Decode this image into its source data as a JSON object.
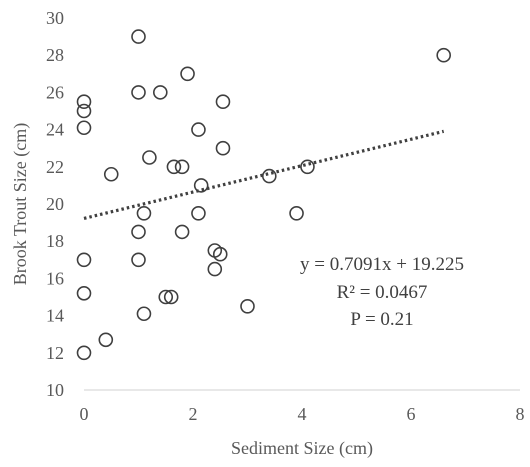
{
  "chart_data": {
    "type": "scatter",
    "title": "",
    "xlabel": "Sediment Size (cm)",
    "ylabel": "Brook Trout Size (cm)",
    "xlim": [
      0,
      8
    ],
    "ylim": [
      10,
      30
    ],
    "x_ticks": [
      "0",
      "2",
      "4",
      "6",
      "8"
    ],
    "y_ticks": [
      "10",
      "12",
      "14",
      "16",
      "18",
      "20",
      "22",
      "24",
      "26",
      "28",
      "30"
    ],
    "grid": false,
    "series": [
      {
        "points": [
          [
            0.0,
            25.5
          ],
          [
            0.0,
            25.0
          ],
          [
            0.0,
            24.1
          ],
          [
            0.0,
            17.0
          ],
          [
            0.0,
            15.2
          ],
          [
            0.0,
            12.0
          ],
          [
            0.4,
            12.7
          ],
          [
            0.5,
            21.6
          ],
          [
            1.0,
            29.0
          ],
          [
            1.0,
            26.0
          ],
          [
            1.0,
            18.5
          ],
          [
            1.0,
            17.0
          ],
          [
            1.1,
            19.5
          ],
          [
            1.1,
            14.1
          ],
          [
            1.2,
            22.5
          ],
          [
            1.4,
            26.0
          ],
          [
            1.5,
            15.0
          ],
          [
            1.6,
            15.0
          ],
          [
            1.65,
            22.0
          ],
          [
            1.8,
            22.0
          ],
          [
            1.8,
            18.5
          ],
          [
            1.9,
            27.0
          ],
          [
            2.1,
            24.0
          ],
          [
            2.1,
            19.5
          ],
          [
            2.15,
            21.0
          ],
          [
            2.4,
            17.5
          ],
          [
            2.4,
            16.5
          ],
          [
            2.5,
            17.3
          ],
          [
            2.55,
            25.5
          ],
          [
            2.55,
            23.0
          ],
          [
            3.0,
            14.5
          ],
          [
            3.4,
            21.5
          ],
          [
            3.9,
            19.5
          ],
          [
            4.1,
            22.0
          ],
          [
            6.6,
            28.0
          ]
        ]
      }
    ],
    "trendline": {
      "slope": 0.7091,
      "intercept": 19.225,
      "x_range": [
        0,
        6.6
      ],
      "style": "dotted"
    },
    "annotations": [
      "y = 0.7091x + 19.225",
      "R² = 0.0467",
      "P = 0.21"
    ]
  }
}
